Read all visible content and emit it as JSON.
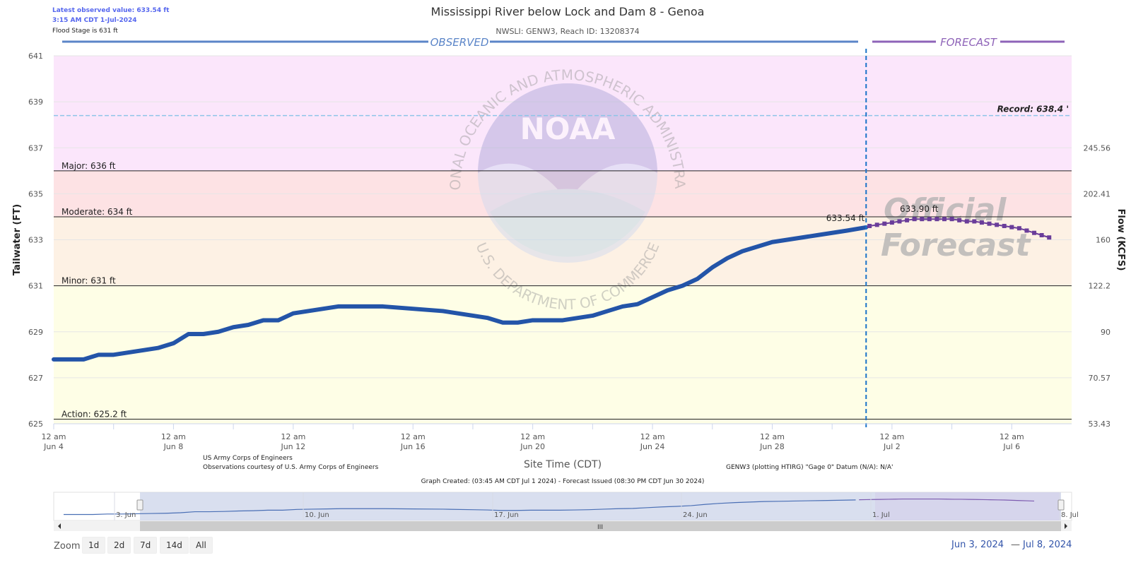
{
  "info": {
    "latest_value": "Latest observed value: 633.54 ft",
    "latest_time": "3:15 AM CDT 1-Jul-2024",
    "flood_stage": "Flood Stage is 631 ft"
  },
  "header": {
    "title": "Mississippi River below Lock and Dam 8 - Genoa",
    "subtitle": "NWSLI: GENW3, Reach ID: 13208374",
    "observed_label": "OBSERVED",
    "forecast_label": "FORECAST"
  },
  "watermark": {
    "agency_ring_top": "NATIONAL OCEANIC AND ATMOSPHERIC ADMINISTRATION",
    "agency_ring_bottom": "U.S. DEPARTMENT OF COMMERCE",
    "logo_text": "NOAA",
    "official_line1": "Official",
    "official_line2": "Forecast"
  },
  "footer": {
    "credit1": "US Army Corps of Engineers",
    "credit2": "Observations courtesy of U.S. Army Corps of Engineers",
    "datum": "GENW3 (plotting HTIRG) \"Gage 0\" Datum (N/A): N/A'",
    "created": "Graph Created: (03:45 AM CDT Jul 1 2024) - Forecast Issued (08:30 PM CDT Jun 30 2024)"
  },
  "navigator": {
    "labels": [
      "3. Jun",
      "10. Jun",
      "17. Jun",
      "24. Jun",
      "1. Jul",
      "8. Jul"
    ],
    "scroll_grip": "III"
  },
  "controls": {
    "zoom_label": "Zoom",
    "buttons": [
      "1d",
      "2d",
      "7d",
      "14d",
      "All"
    ],
    "range_from": "Jun 3, 2024",
    "range_sep": "—",
    "range_to": "Jul 8, 2024"
  },
  "colors": {
    "observed": "#2354a8",
    "forecast": "#6a3d9a",
    "record_line": "#8ec5e8",
    "major_band": "#fbe6fb",
    "moderate_band": "#fde2e4",
    "minor_band": "#fdf1e4",
    "action_band": "#fefee6",
    "now_line": "#1a73c9"
  },
  "chart_data": {
    "type": "line",
    "title": "Mississippi River below Lock and Dam 8 - Genoa",
    "subtitle": "NWSLI: GENW3, Reach ID: 13208374",
    "xlabel": "Site Time (CDT)",
    "ylabel": "Tailwater (FT)",
    "y2label": "Flow (KCFS)",
    "xlim": [
      "2024-06-04 00:00",
      "2024-07-08 00:00"
    ],
    "ylim": [
      625,
      641
    ],
    "y_ticks": [
      "625",
      "627",
      "629",
      "631",
      "633",
      "635",
      "637",
      "639",
      "641"
    ],
    "y2_ticks": [
      {
        "stage": 625,
        "label": "53.43"
      },
      {
        "stage": 627,
        "label": "70.57"
      },
      {
        "stage": 629,
        "label": "90"
      },
      {
        "stage": 631,
        "label": "122.2"
      },
      {
        "stage": 633,
        "label": "160"
      },
      {
        "stage": 635,
        "label": "202.41"
      },
      {
        "stage": 637,
        "label": "245.56"
      }
    ],
    "x_ticks": [
      {
        "date": "2024-06-04",
        "line1": "12 am",
        "line2": "Jun 4"
      },
      {
        "date": "2024-06-08",
        "line1": "12 am",
        "line2": "Jun 8"
      },
      {
        "date": "2024-06-12",
        "line1": "12 am",
        "line2": "Jun 12"
      },
      {
        "date": "2024-06-16",
        "line1": "12 am",
        "line2": "Jun 16"
      },
      {
        "date": "2024-06-20",
        "line1": "12 am",
        "line2": "Jun 20"
      },
      {
        "date": "2024-06-24",
        "line1": "12 am",
        "line2": "Jun 24"
      },
      {
        "date": "2024-06-28",
        "line1": "12 am",
        "line2": "Jun 28"
      },
      {
        "date": "2024-07-02",
        "line1": "12 am",
        "line2": "Jul 2"
      },
      {
        "date": "2024-07-06",
        "line1": "12 am",
        "line2": "Jul 6"
      }
    ],
    "thresholds": [
      {
        "name": "Major",
        "value": 636,
        "label": "Major: 636 ft"
      },
      {
        "name": "Moderate",
        "value": 634,
        "label": "Moderate: 634 ft"
      },
      {
        "name": "Minor",
        "value": 631,
        "label": "Minor: 631 ft"
      },
      {
        "name": "Action",
        "value": 625.2,
        "label": "Action: 625.2 ft"
      }
    ],
    "record": {
      "value": 638.4,
      "label": "Record: 638.4 '"
    },
    "now": "2024-07-01 03:15",
    "series": [
      {
        "name": "Observed",
        "points": [
          [
            "2024-06-04 00:00",
            627.8
          ],
          [
            "2024-06-04 12:00",
            627.8
          ],
          [
            "2024-06-05 00:00",
            627.8
          ],
          [
            "2024-06-05 12:00",
            628.0
          ],
          [
            "2024-06-06 00:00",
            628.0
          ],
          [
            "2024-06-06 12:00",
            628.1
          ],
          [
            "2024-06-07 00:00",
            628.2
          ],
          [
            "2024-06-07 12:00",
            628.3
          ],
          [
            "2024-06-08 00:00",
            628.5
          ],
          [
            "2024-06-08 12:00",
            628.9
          ],
          [
            "2024-06-09 00:00",
            628.9
          ],
          [
            "2024-06-09 12:00",
            629.0
          ],
          [
            "2024-06-10 00:00",
            629.2
          ],
          [
            "2024-06-10 12:00",
            629.3
          ],
          [
            "2024-06-11 00:00",
            629.5
          ],
          [
            "2024-06-11 12:00",
            629.5
          ],
          [
            "2024-06-12 00:00",
            629.8
          ],
          [
            "2024-06-12 12:00",
            629.9
          ],
          [
            "2024-06-13 00:00",
            630.0
          ],
          [
            "2024-06-13 12:00",
            630.1
          ],
          [
            "2024-06-14 00:00",
            630.1
          ],
          [
            "2024-06-15 00:00",
            630.1
          ],
          [
            "2024-06-16 00:00",
            630.0
          ],
          [
            "2024-06-17 00:00",
            629.9
          ],
          [
            "2024-06-18 00:00",
            629.7
          ],
          [
            "2024-06-18 12:00",
            629.6
          ],
          [
            "2024-06-19 00:00",
            629.4
          ],
          [
            "2024-06-19 12:00",
            629.4
          ],
          [
            "2024-06-20 00:00",
            629.5
          ],
          [
            "2024-06-21 00:00",
            629.5
          ],
          [
            "2024-06-21 12:00",
            629.6
          ],
          [
            "2024-06-22 00:00",
            629.7
          ],
          [
            "2024-06-22 12:00",
            629.9
          ],
          [
            "2024-06-23 00:00",
            630.1
          ],
          [
            "2024-06-23 12:00",
            630.2
          ],
          [
            "2024-06-24 00:00",
            630.5
          ],
          [
            "2024-06-24 12:00",
            630.8
          ],
          [
            "2024-06-25 00:00",
            631.0
          ],
          [
            "2024-06-25 12:00",
            631.3
          ],
          [
            "2024-06-26 00:00",
            631.8
          ],
          [
            "2024-06-26 12:00",
            632.2
          ],
          [
            "2024-06-27 00:00",
            632.5
          ],
          [
            "2024-06-27 12:00",
            632.7
          ],
          [
            "2024-06-28 00:00",
            632.9
          ],
          [
            "2024-06-28 12:00",
            633.0
          ],
          [
            "2024-06-29 00:00",
            633.1
          ],
          [
            "2024-06-29 12:00",
            633.2
          ],
          [
            "2024-06-30 00:00",
            633.3
          ],
          [
            "2024-06-30 12:00",
            633.4
          ],
          [
            "2024-07-01 03:15",
            633.54
          ]
        ]
      },
      {
        "name": "Forecast",
        "points": [
          [
            "2024-07-01 06:00",
            633.6
          ],
          [
            "2024-07-01 12:00",
            633.65
          ],
          [
            "2024-07-01 18:00",
            633.7
          ],
          [
            "2024-07-02 00:00",
            633.75
          ],
          [
            "2024-07-02 06:00",
            633.8
          ],
          [
            "2024-07-02 12:00",
            633.85
          ],
          [
            "2024-07-02 18:00",
            633.9
          ],
          [
            "2024-07-03 00:00",
            633.9
          ],
          [
            "2024-07-03 06:00",
            633.9
          ],
          [
            "2024-07-03 12:00",
            633.9
          ],
          [
            "2024-07-03 18:00",
            633.9
          ],
          [
            "2024-07-04 00:00",
            633.9
          ],
          [
            "2024-07-04 06:00",
            633.85
          ],
          [
            "2024-07-04 12:00",
            633.8
          ],
          [
            "2024-07-04 18:00",
            633.8
          ],
          [
            "2024-07-05 00:00",
            633.75
          ],
          [
            "2024-07-05 06:00",
            633.7
          ],
          [
            "2024-07-05 12:00",
            633.65
          ],
          [
            "2024-07-05 18:00",
            633.6
          ],
          [
            "2024-07-06 00:00",
            633.55
          ],
          [
            "2024-07-06 06:00",
            633.5
          ],
          [
            "2024-07-06 12:00",
            633.4
          ],
          [
            "2024-07-06 18:00",
            633.3
          ],
          [
            "2024-07-07 00:00",
            633.2
          ],
          [
            "2024-07-07 06:00",
            633.1
          ]
        ]
      }
    ],
    "annotations": [
      {
        "label": "633.54 ft",
        "date": "2024-07-01 03:15",
        "value": 633.54
      },
      {
        "label": "633.90 ft",
        "date": "2024-07-03 00:00",
        "value": 633.9
      }
    ]
  }
}
